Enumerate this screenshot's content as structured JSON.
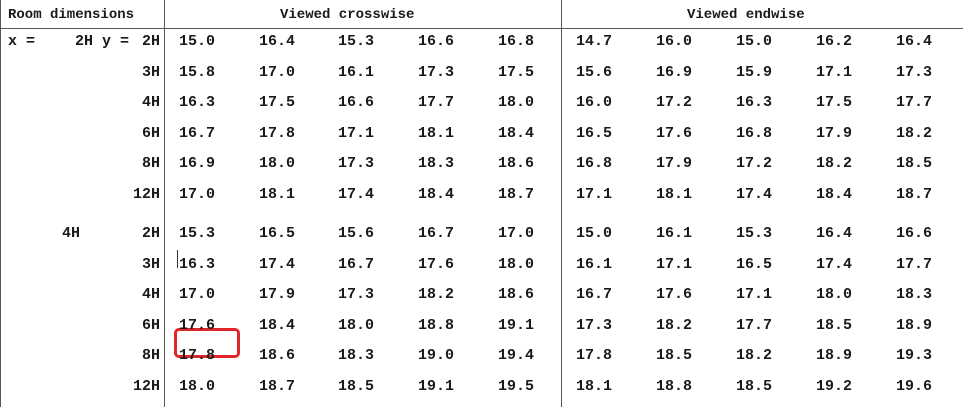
{
  "header": {
    "room_dimensions": "Room dimensions",
    "crosswise": "Viewed crosswise",
    "endwise": "Viewed endwise"
  },
  "x_label": "x =",
  "group_labels": [
    "2H y =",
    "4H"
  ],
  "groups": [
    {
      "rows": [
        {
          "y": "2H",
          "cross": [
            "15.0",
            "16.4",
            "15.3",
            "16.6",
            "16.8"
          ],
          "end": [
            "14.7",
            "16.0",
            "15.0",
            "16.2",
            "16.4"
          ]
        },
        {
          "y": "3H",
          "cross": [
            "15.8",
            "17.0",
            "16.1",
            "17.3",
            "17.5"
          ],
          "end": [
            "15.6",
            "16.9",
            "15.9",
            "17.1",
            "17.3"
          ]
        },
        {
          "y": "4H",
          "cross": [
            "16.3",
            "17.5",
            "16.6",
            "17.7",
            "18.0"
          ],
          "end": [
            "16.0",
            "17.2",
            "16.3",
            "17.5",
            "17.7"
          ]
        },
        {
          "y": "6H",
          "cross": [
            "16.7",
            "17.8",
            "17.1",
            "18.1",
            "18.4"
          ],
          "end": [
            "16.5",
            "17.6",
            "16.8",
            "17.9",
            "18.2"
          ]
        },
        {
          "y": "8H",
          "cross": [
            "16.9",
            "18.0",
            "17.3",
            "18.3",
            "18.6"
          ],
          "end": [
            "16.8",
            "17.9",
            "17.2",
            "18.2",
            "18.5"
          ]
        },
        {
          "y": "12H",
          "cross": [
            "17.0",
            "18.1",
            "17.4",
            "18.4",
            "18.7"
          ],
          "end": [
            "17.1",
            "18.1",
            "17.4",
            "18.4",
            "18.7"
          ]
        }
      ]
    },
    {
      "rows": [
        {
          "y": "2H",
          "cross": [
            "15.3",
            "16.5",
            "15.6",
            "16.7",
            "17.0"
          ],
          "end": [
            "15.0",
            "16.1",
            "15.3",
            "16.4",
            "16.6"
          ]
        },
        {
          "y": "3H",
          "cross": [
            "16.3",
            "17.4",
            "16.7",
            "17.6",
            "18.0"
          ],
          "end": [
            "16.1",
            "17.1",
            "16.5",
            "17.4",
            "17.7"
          ]
        },
        {
          "y": "4H",
          "cross": [
            "17.0",
            "17.9",
            "17.3",
            "18.2",
            "18.6"
          ],
          "end": [
            "16.7",
            "17.6",
            "17.1",
            "18.0",
            "18.3"
          ]
        },
        {
          "y": "6H",
          "cross": [
            "17.6",
            "18.4",
            "18.0",
            "18.8",
            "19.1"
          ],
          "end": [
            "17.3",
            "18.2",
            "17.7",
            "18.5",
            "18.9"
          ]
        },
        {
          "y": "8H",
          "cross": [
            "17.8",
            "18.6",
            "18.3",
            "19.0",
            "19.4"
          ],
          "end": [
            "17.8",
            "18.5",
            "18.2",
            "18.9",
            "19.3"
          ]
        },
        {
          "y": "12H",
          "cross": [
            "18.0",
            "18.7",
            "18.5",
            "19.1",
            "19.5"
          ],
          "end": [
            "18.1",
            "18.8",
            "18.5",
            "19.2",
            "19.6"
          ]
        }
      ]
    }
  ],
  "highlight": {
    "group": 1,
    "row": 4,
    "section": "cross",
    "col": 0,
    "color": "#e0262a"
  }
}
